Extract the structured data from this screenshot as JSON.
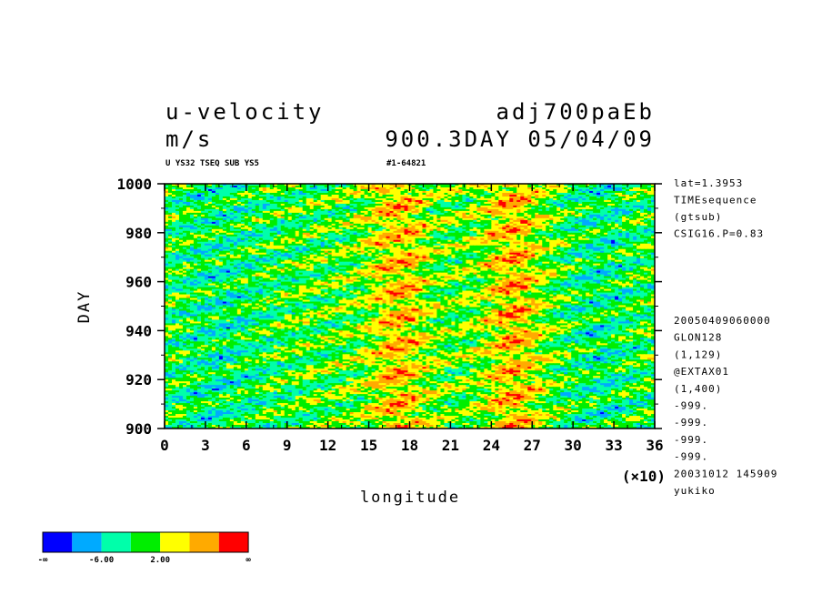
{
  "header": {
    "variable": "u-velocity",
    "units": "m/s",
    "experiment": "adj700paEb",
    "time_date": "900.3DAY 05/04/09",
    "subtitle_left": "U YS32 TSEQ SUB YS5",
    "subtitle_right": "#1-64821"
  },
  "side_info": {
    "top": [
      "lat=1.3953",
      "TIMEsequence",
      "(gtsub)",
      "CSIG16.P=0.83"
    ],
    "bottom": [
      "20050409060000",
      "GLON128",
      "(1,129)",
      "@EXTAX01",
      "(1,400)",
      "-999.",
      "-999.",
      "-999.",
      "-999.",
      "20031012 145909",
      "yukiko"
    ]
  },
  "chart_data": {
    "type": "heatmap",
    "xlabel": "longitude",
    "ylabel": "DAY",
    "x_multiplier": "(×10)",
    "xlim": [
      0,
      36
    ],
    "ylim": [
      900,
      1000
    ],
    "x_ticks": [
      "0",
      "3",
      "6",
      "9",
      "12",
      "15",
      "18",
      "21",
      "24",
      "27",
      "30",
      "33",
      "36"
    ],
    "y_ticks": [
      "900",
      "920",
      "940",
      "960",
      "980",
      "1000"
    ],
    "colorbar": {
      "colors": [
        "#0000ff",
        "#00aaff",
        "#00ffaa",
        "#00ee00",
        "#ffff00",
        "#ffaa00",
        "#ff0000"
      ],
      "labels": [
        "-∞",
        "-6.00",
        "2.00",
        "∞"
      ]
    },
    "field_description": "Alternating bands of positive (yellow–red) u-velocity near longitude 150–180 and 230–270, negative (blue) streaks elsewhere."
  }
}
